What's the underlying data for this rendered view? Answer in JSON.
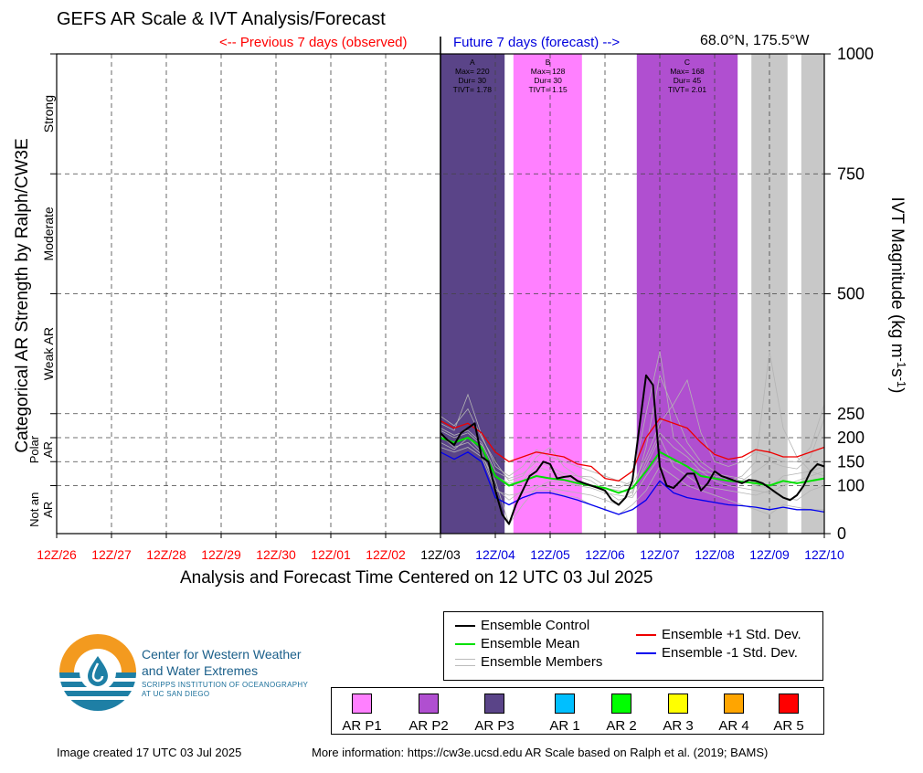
{
  "header": {
    "title": "GEFS AR Scale & IVT Analysis/Forecast",
    "previous_label": "<-- Previous 7 days (observed)",
    "future_label": "Future 7 days (forecast) -->",
    "location": "68.0°N, 175.5°W"
  },
  "footer": {
    "created": "Image created 17 UTC 03 Jul 2025",
    "more_info": "More information: https://cw3e.ucsd.edu AR Scale based on Ralph et al. (2019; BAMS)",
    "org_name_1": "Center for Western Weather",
    "org_name_2": "and Water Extremes",
    "org_sub_1": "SCRIPPS INSTITUTION OF OCEANOGRAPHY",
    "org_sub_2": "AT UC SAN DIEGO"
  },
  "legend": {
    "items": [
      {
        "label": "Ensemble Control",
        "color": "#000000"
      },
      {
        "label": "Ensemble Mean",
        "color": "#00e000"
      },
      {
        "label": "Ensemble Members",
        "color": "#bbbbbb"
      },
      {
        "label": "Ensemble +1 Std. Dev.",
        "color": "#ee0000"
      },
      {
        "label": "Ensemble -1 Std. Dev.",
        "color": "#0000ee"
      }
    ],
    "categories": [
      {
        "label": "AR P1",
        "color": "#ff80ff"
      },
      {
        "label": "AR P2",
        "color": "#b04fd0"
      },
      {
        "label": "AR P3",
        "color": "#5a4488"
      },
      {
        "label": "AR 1",
        "color": "#00bfff"
      },
      {
        "label": "AR 2",
        "color": "#00ff00"
      },
      {
        "label": "AR 3",
        "color": "#ffff00"
      },
      {
        "label": "AR 4",
        "color": "#ffa500"
      },
      {
        "label": "AR 5",
        "color": "#ff0000"
      }
    ]
  },
  "chart_data": {
    "type": "line",
    "xlabel": "Analysis and Forecast Time Centered on 12 UTC 03 Jul 2025",
    "ylabel_left": "Categorical AR Strength by Ralph/CW3E",
    "ylabel_right_main": "IVT Magnitude (kg m",
    "ylabel_right_sup1": "-1",
    "ylabel_right_mid": "s",
    "ylabel_right_sup2": "-1",
    "ylabel_right_end": ")",
    "ylim": [
      0,
      1000
    ],
    "xlim": [
      0,
      14
    ],
    "x_ticks": [
      {
        "label": "12Z/26",
        "color": "#ff0000"
      },
      {
        "label": "12Z/27",
        "color": "#ff0000"
      },
      {
        "label": "12Z/28",
        "color": "#ff0000"
      },
      {
        "label": "12Z/29",
        "color": "#ff0000"
      },
      {
        "label": "12Z/30",
        "color": "#ff0000"
      },
      {
        "label": "12Z/01",
        "color": "#ff0000"
      },
      {
        "label": "12Z/02",
        "color": "#ff0000"
      },
      {
        "label": "12Z/03",
        "color": "#000000"
      },
      {
        "label": "12Z/04",
        "color": "#0000dd"
      },
      {
        "label": "12Z/05",
        "color": "#0000dd"
      },
      {
        "label": "12Z/06",
        "color": "#0000dd"
      },
      {
        "label": "12Z/07",
        "color": "#0000dd"
      },
      {
        "label": "12Z/08",
        "color": "#0000dd"
      },
      {
        "label": "12Z/09",
        "color": "#0000dd"
      },
      {
        "label": "12Z/10",
        "color": "#0000dd"
      }
    ],
    "y_ticks": [
      0,
      100,
      150,
      200,
      250,
      500,
      750,
      1000
    ],
    "category_labels": [
      {
        "label": "Strong",
        "lo": 750,
        "hi": 1000
      },
      {
        "label": "Moderate",
        "lo": 500,
        "hi": 750
      },
      {
        "label": "Weak AR",
        "lo": 250,
        "hi": 500
      },
      {
        "label": "Polar AR",
        "lo": 100,
        "hi": 250,
        "two_line": [
          "Polar",
          "AR"
        ]
      },
      {
        "label": "Not an AR",
        "lo": 0,
        "hi": 100,
        "two_line": [
          "Not an",
          "AR"
        ]
      }
    ],
    "bands": [
      {
        "x0": 7.0,
        "x1": 8.17,
        "color": "#5a4488"
      },
      {
        "x0": 8.33,
        "x1": 9.58,
        "color": "#ff80ff"
      },
      {
        "x0": 10.58,
        "x1": 12.42,
        "color": "#b04fd0"
      },
      {
        "x0": 12.67,
        "x1": 13.33,
        "color": "#c8c8c8"
      },
      {
        "x0": 13.58,
        "x1": 14.0,
        "color": "#c8c8c8"
      }
    ],
    "events": [
      {
        "x": 7.58,
        "lines": [
          "A",
          "Max= 220",
          "Dur= 30",
          "TIVT= 1.78"
        ]
      },
      {
        "x": 8.96,
        "lines": [
          "B",
          "Max= 128",
          "Dur= 30",
          "TIVT= 1.15"
        ]
      },
      {
        "x": 11.5,
        "lines": [
          "C",
          "Max= 168",
          "Dur= 45",
          "TIVT= 2.01"
        ]
      }
    ],
    "series": [
      {
        "name": "Ensemble Control",
        "color": "#000000",
        "width": 2,
        "x": [
          7.0,
          7.125,
          7.25,
          7.375,
          7.5,
          7.625,
          7.75,
          7.875,
          8.0,
          8.125,
          8.25,
          8.375,
          8.5,
          8.625,
          8.75,
          8.875,
          9.0,
          9.125,
          9.25,
          9.375,
          9.5,
          9.625,
          9.75,
          9.875,
          10.0,
          10.125,
          10.25,
          10.375,
          10.5,
          10.625,
          10.75,
          10.875,
          11.0,
          11.125,
          11.25,
          11.375,
          11.5,
          11.625,
          11.75,
          11.875,
          12.0,
          12.125,
          12.25,
          12.375,
          12.5,
          12.625,
          12.75,
          12.875,
          13.0,
          13.125,
          13.25,
          13.375,
          13.5,
          13.625,
          13.75,
          13.875,
          14.0
        ],
        "y": [
          210,
          195,
          185,
          210,
          220,
          230,
          160,
          150,
          90,
          40,
          20,
          60,
          90,
          120,
          130,
          150,
          145,
          115,
          118,
          120,
          110,
          105,
          100,
          95,
          90,
          70,
          60,
          75,
          110,
          220,
          330,
          310,
          140,
          100,
          95,
          110,
          125,
          125,
          90,
          105,
          130,
          120,
          115,
          110,
          105,
          112,
          110,
          105,
          95,
          85,
          75,
          70,
          80,
          100,
          130,
          145,
          140
        ]
      },
      {
        "name": "Ensemble Mean",
        "color": "#00e000",
        "width": 2,
        "x": [
          7.0,
          7.25,
          7.5,
          7.75,
          8.0,
          8.25,
          8.5,
          8.75,
          9.0,
          9.25,
          9.5,
          9.75,
          10.0,
          10.25,
          10.5,
          10.75,
          11.0,
          11.25,
          11.5,
          11.75,
          12.0,
          12.25,
          12.5,
          12.75,
          13.0,
          13.25,
          13.5,
          13.75,
          14.0
        ],
        "y": [
          200,
          190,
          200,
          180,
          120,
          100,
          110,
          120,
          115,
          112,
          105,
          100,
          95,
          85,
          95,
          130,
          170,
          155,
          140,
          120,
          115,
          110,
          108,
          105,
          100,
          110,
          105,
          110,
          115
        ]
      },
      {
        "name": "Ensemble +1 Std. Dev.",
        "color": "#ee0000",
        "width": 1.3,
        "x": [
          7.0,
          7.25,
          7.5,
          7.75,
          8.0,
          8.25,
          8.5,
          8.75,
          9.0,
          9.25,
          9.5,
          9.75,
          10.0,
          10.25,
          10.5,
          10.75,
          11.0,
          11.25,
          11.5,
          11.75,
          12.0,
          12.25,
          12.5,
          12.75,
          13.0,
          13.25,
          13.5,
          13.75,
          14.0
        ],
        "y": [
          235,
          220,
          230,
          210,
          170,
          150,
          160,
          170,
          165,
          160,
          145,
          140,
          115,
          110,
          130,
          200,
          240,
          230,
          220,
          190,
          165,
          155,
          160,
          175,
          170,
          160,
          160,
          170,
          180
        ]
      },
      {
        "name": "Ensemble -1 Std. Dev.",
        "color": "#0000ee",
        "width": 1.3,
        "x": [
          7.0,
          7.25,
          7.5,
          7.75,
          8.0,
          8.25,
          8.5,
          8.75,
          9.0,
          9.25,
          9.5,
          9.75,
          10.0,
          10.25,
          10.5,
          10.75,
          11.0,
          11.25,
          11.5,
          11.75,
          12.0,
          12.25,
          12.5,
          12.75,
          13.0,
          13.25,
          13.5,
          13.75,
          14.0
        ],
        "y": [
          170,
          155,
          170,
          150,
          75,
          60,
          75,
          85,
          85,
          78,
          70,
          60,
          50,
          40,
          50,
          70,
          110,
          85,
          75,
          70,
          65,
          60,
          58,
          55,
          50,
          55,
          50,
          50,
          45
        ]
      }
    ],
    "members": [
      {
        "x": [
          7.0,
          7.25,
          7.5,
          7.75,
          8.0,
          8.25,
          8.5,
          8.75,
          9.0,
          9.25,
          9.5,
          9.75,
          10.0,
          10.25,
          10.5,
          10.75,
          11.0,
          11.25,
          11.5,
          11.75,
          12.0,
          12.25,
          12.5,
          12.75,
          13.0,
          13.25,
          13.5,
          13.75,
          14.0
        ],
        "y": [
          245,
          225,
          260,
          200,
          150,
          110,
          120,
          160,
          180,
          140,
          120,
          110,
          90,
          70,
          80,
          180,
          330,
          260,
          190,
          150,
          130,
          110,
          120,
          150,
          380,
          220,
          160,
          130,
          120
        ]
      },
      {
        "x": [
          7.0,
          7.25,
          7.5,
          7.75,
          8.0,
          8.25,
          8.5,
          8.75,
          9.0,
          9.25,
          9.5,
          9.75,
          10.0,
          10.25,
          10.5,
          10.75,
          11.0,
          11.25,
          11.5,
          11.75,
          12.0,
          12.25,
          12.5,
          12.75,
          13.0,
          13.25,
          13.5,
          13.75,
          14.0
        ],
        "y": [
          190,
          175,
          200,
          170,
          95,
          70,
          90,
          100,
          95,
          90,
          85,
          80,
          70,
          60,
          90,
          140,
          200,
          140,
          120,
          100,
          95,
          90,
          85,
          80,
          90,
          75,
          70,
          90,
          100
        ]
      },
      {
        "x": [
          7.0,
          7.25,
          7.5,
          7.75,
          8.0,
          8.25,
          8.5,
          8.75,
          9.0,
          9.25,
          9.5,
          9.75,
          10.0,
          10.25,
          10.5,
          10.75,
          11.0,
          11.25,
          11.5,
          11.75,
          12.0,
          12.25,
          12.5,
          12.75,
          13.0,
          13.25,
          13.5,
          13.75,
          14.0
        ],
        "y": [
          220,
          205,
          215,
          190,
          130,
          115,
          125,
          150,
          140,
          125,
          120,
          118,
          100,
          95,
          110,
          250,
          380,
          200,
          170,
          140,
          120,
          115,
          110,
          130,
          150,
          140,
          135,
          160,
          240
        ]
      },
      {
        "x": [
          7.0,
          7.25,
          7.5,
          7.75,
          8.0,
          8.25,
          8.5,
          8.75,
          9.0,
          9.25,
          9.5,
          9.75,
          10.0,
          10.25,
          10.5,
          10.75,
          11.0,
          11.25,
          11.5,
          11.75,
          12.0,
          12.25,
          12.5,
          12.75,
          13.0,
          13.25,
          13.5,
          13.75,
          14.0
        ],
        "y": [
          205,
          180,
          190,
          165,
          110,
          20,
          60,
          95,
          110,
          105,
          100,
          95,
          85,
          80,
          75,
          120,
          160,
          150,
          140,
          130,
          110,
          100,
          95,
          90,
          85,
          100,
          110,
          120,
          130
        ]
      },
      {
        "x": [
          7.0,
          7.25,
          7.5,
          7.75,
          8.0,
          8.25,
          8.5,
          8.75,
          9.0,
          9.25,
          9.5,
          9.75,
          10.0,
          10.25,
          10.5,
          10.75,
          11.0,
          11.25,
          11.5,
          11.75,
          12.0,
          12.25,
          12.5,
          12.75,
          13.0,
          13.25,
          13.5,
          13.75,
          14.0
        ],
        "y": [
          230,
          215,
          290,
          205,
          140,
          120,
          140,
          175,
          160,
          150,
          140,
          130,
          120,
          110,
          100,
          160,
          230,
          270,
          320,
          210,
          150,
          140,
          150,
          170,
          160,
          150,
          150,
          180,
          270
        ]
      },
      {
        "x": [
          7.0,
          7.25,
          7.5,
          7.75,
          8.0,
          8.25,
          8.5,
          8.75,
          9.0,
          9.25,
          9.5,
          9.75,
          10.0,
          10.25,
          10.5,
          10.75,
          11.0,
          11.25,
          11.5,
          11.75,
          12.0,
          12.25,
          12.5,
          12.75,
          13.0,
          13.25,
          13.5,
          13.75,
          14.0
        ],
        "y": [
          180,
          170,
          180,
          160,
          90,
          80,
          85,
          90,
          90,
          80,
          75,
          60,
          50,
          40,
          60,
          90,
          140,
          120,
          100,
          90,
          80,
          70,
          60,
          50,
          40,
          60,
          55,
          50,
          50
        ]
      },
      {
        "x": [
          7.0,
          7.25,
          7.5,
          7.75,
          8.0,
          8.25,
          8.5,
          8.75,
          9.0,
          9.25,
          9.5,
          9.75,
          10.0,
          10.25,
          10.5,
          10.75,
          11.0,
          11.25,
          11.5,
          11.75,
          12.0,
          12.25,
          12.5,
          12.75,
          13.0,
          13.25,
          13.5,
          13.75,
          14.0
        ],
        "y": [
          215,
          200,
          210,
          185,
          120,
          105,
          110,
          140,
          130,
          120,
          110,
          100,
          95,
          90,
          85,
          150,
          210,
          180,
          160,
          130,
          125,
          120,
          115,
          100,
          95,
          120,
          125,
          130,
          140
        ]
      }
    ]
  }
}
